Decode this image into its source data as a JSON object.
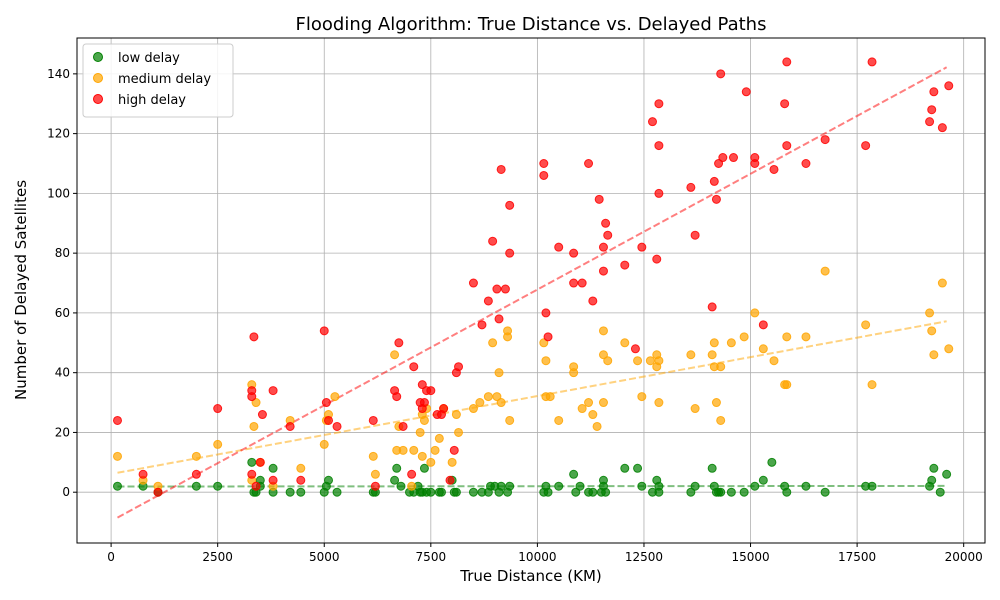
{
  "chart_data": {
    "type": "scatter",
    "title": "Flooding Algorithm: True Distance vs. Delayed Paths",
    "xlabel": "True Distance (KM)",
    "ylabel": "Number of Delayed Satellites",
    "xlim": [
      -800,
      20500
    ],
    "ylim": [
      -17,
      152
    ],
    "xticks": [
      0,
      2500,
      5000,
      7500,
      10000,
      12500,
      15000,
      17500,
      20000
    ],
    "yticks": [
      0,
      20,
      40,
      60,
      80,
      100,
      120,
      140
    ],
    "grid": true,
    "legend_position": "top-left",
    "series": [
      {
        "name": "low delay",
        "color": "#008000",
        "trend": {
          "x": [
            150,
            19600
          ],
          "y": [
            1.9,
            2.1
          ]
        },
        "points": [
          [
            150,
            2
          ],
          [
            750,
            2
          ],
          [
            1100,
            0
          ],
          [
            2000,
            2
          ],
          [
            2500,
            2
          ],
          [
            3300,
            10
          ],
          [
            3350,
            0
          ],
          [
            3400,
            0
          ],
          [
            3500,
            4
          ],
          [
            3500,
            2
          ],
          [
            3800,
            8
          ],
          [
            3800,
            0
          ],
          [
            4200,
            0
          ],
          [
            4450,
            0
          ],
          [
            5000,
            0
          ],
          [
            5050,
            2
          ],
          [
            5100,
            4
          ],
          [
            5300,
            0
          ],
          [
            6150,
            0
          ],
          [
            6200,
            0
          ],
          [
            6650,
            4
          ],
          [
            6700,
            8
          ],
          [
            6800,
            2
          ],
          [
            7000,
            0
          ],
          [
            7100,
            0
          ],
          [
            7200,
            2
          ],
          [
            7250,
            0
          ],
          [
            7300,
            0
          ],
          [
            7350,
            8
          ],
          [
            7400,
            0
          ],
          [
            7500,
            0
          ],
          [
            7700,
            0
          ],
          [
            7750,
            0
          ],
          [
            8000,
            4
          ],
          [
            8050,
            0
          ],
          [
            8100,
            0
          ],
          [
            8500,
            0
          ],
          [
            8700,
            0
          ],
          [
            8850,
            0
          ],
          [
            8900,
            2
          ],
          [
            9000,
            2
          ],
          [
            9100,
            0
          ],
          [
            9150,
            2
          ],
          [
            9300,
            0
          ],
          [
            9350,
            2
          ],
          [
            10150,
            0
          ],
          [
            10200,
            2
          ],
          [
            10250,
            0
          ],
          [
            10500,
            2
          ],
          [
            10850,
            6
          ],
          [
            10900,
            0
          ],
          [
            11000,
            2
          ],
          [
            11200,
            0
          ],
          [
            11300,
            0
          ],
          [
            11500,
            0
          ],
          [
            11550,
            4
          ],
          [
            11550,
            2
          ],
          [
            11600,
            0
          ],
          [
            12050,
            8
          ],
          [
            12350,
            8
          ],
          [
            12450,
            2
          ],
          [
            12700,
            0
          ],
          [
            12800,
            4
          ],
          [
            12850,
            2
          ],
          [
            12850,
            0
          ],
          [
            13600,
            0
          ],
          [
            13700,
            2
          ],
          [
            14100,
            8
          ],
          [
            14150,
            2
          ],
          [
            14200,
            0
          ],
          [
            14250,
            0
          ],
          [
            14300,
            0
          ],
          [
            14550,
            0
          ],
          [
            14850,
            0
          ],
          [
            15100,
            2
          ],
          [
            15300,
            4
          ],
          [
            15500,
            10
          ],
          [
            15800,
            2
          ],
          [
            15850,
            0
          ],
          [
            16300,
            2
          ],
          [
            16750,
            0
          ],
          [
            17700,
            2
          ],
          [
            17850,
            2
          ],
          [
            19200,
            2
          ],
          [
            19250,
            4
          ],
          [
            19300,
            8
          ],
          [
            19450,
            0
          ],
          [
            19600,
            6
          ]
        ]
      },
      {
        "name": "medium delay",
        "color": "#FFA500",
        "trend": {
          "x": [
            150,
            19600
          ],
          "y": [
            6.5,
            57.2
          ]
        },
        "points": [
          [
            150,
            12
          ],
          [
            750,
            4
          ],
          [
            1100,
            2
          ],
          [
            2000,
            12
          ],
          [
            2500,
            16
          ],
          [
            3300,
            36
          ],
          [
            3300,
            4
          ],
          [
            3350,
            22
          ],
          [
            3400,
            30
          ],
          [
            3500,
            10
          ],
          [
            3800,
            2
          ],
          [
            4200,
            24
          ],
          [
            4450,
            8
          ],
          [
            5000,
            16
          ],
          [
            5050,
            24
          ],
          [
            5100,
            26
          ],
          [
            5250,
            32
          ],
          [
            6150,
            12
          ],
          [
            6200,
            6
          ],
          [
            6650,
            46
          ],
          [
            6700,
            14
          ],
          [
            6750,
            22
          ],
          [
            6850,
            14
          ],
          [
            7050,
            2
          ],
          [
            7100,
            14
          ],
          [
            7250,
            20
          ],
          [
            7300,
            26
          ],
          [
            7300,
            12
          ],
          [
            7350,
            24
          ],
          [
            7400,
            28
          ],
          [
            7500,
            10
          ],
          [
            7600,
            14
          ],
          [
            7700,
            18
          ],
          [
            7800,
            28
          ],
          [
            8000,
            10
          ],
          [
            8100,
            26
          ],
          [
            8150,
            20
          ],
          [
            8500,
            28
          ],
          [
            8650,
            30
          ],
          [
            8850,
            32
          ],
          [
            8950,
            50
          ],
          [
            9050,
            32
          ],
          [
            9100,
            40
          ],
          [
            9150,
            30
          ],
          [
            9300,
            52
          ],
          [
            9300,
            54
          ],
          [
            9350,
            24
          ],
          [
            10150,
            50
          ],
          [
            10200,
            44
          ],
          [
            10200,
            32
          ],
          [
            10300,
            32
          ],
          [
            10500,
            24
          ],
          [
            10850,
            40
          ],
          [
            10850,
            42
          ],
          [
            11050,
            28
          ],
          [
            11200,
            30
          ],
          [
            11300,
            26
          ],
          [
            11400,
            22
          ],
          [
            11550,
            30
          ],
          [
            11550,
            54
          ],
          [
            11550,
            46
          ],
          [
            11650,
            44
          ],
          [
            12050,
            50
          ],
          [
            12350,
            44
          ],
          [
            12450,
            32
          ],
          [
            12650,
            44
          ],
          [
            12800,
            46
          ],
          [
            12800,
            42
          ],
          [
            12850,
            44
          ],
          [
            12850,
            30
          ],
          [
            13600,
            46
          ],
          [
            13700,
            28
          ],
          [
            14100,
            46
          ],
          [
            14150,
            50
          ],
          [
            14150,
            42
          ],
          [
            14200,
            30
          ],
          [
            14300,
            42
          ],
          [
            14300,
            24
          ],
          [
            14550,
            50
          ],
          [
            14850,
            52
          ],
          [
            15100,
            60
          ],
          [
            15300,
            48
          ],
          [
            15550,
            44
          ],
          [
            15800,
            36
          ],
          [
            15850,
            36
          ],
          [
            15850,
            52
          ],
          [
            16300,
            52
          ],
          [
            16750,
            74
          ],
          [
            17700,
            56
          ],
          [
            17850,
            36
          ],
          [
            19200,
            60
          ],
          [
            19250,
            54
          ],
          [
            19300,
            46
          ],
          [
            19500,
            70
          ],
          [
            19650,
            48
          ]
        ]
      },
      {
        "name": "high delay",
        "color": "#FF0000",
        "trend": {
          "x": [
            150,
            19600
          ],
          "y": [
            -8.5,
            142.2
          ]
        },
        "points": [
          [
            150,
            24
          ],
          [
            750,
            6
          ],
          [
            1100,
            0
          ],
          [
            2000,
            6
          ],
          [
            2500,
            28
          ],
          [
            3300,
            34
          ],
          [
            3300,
            32
          ],
          [
            3300,
            6
          ],
          [
            3350,
            52
          ],
          [
            3400,
            2
          ],
          [
            3500,
            10
          ],
          [
            3550,
            26
          ],
          [
            3800,
            34
          ],
          [
            3800,
            4
          ],
          [
            4200,
            22
          ],
          [
            4450,
            4
          ],
          [
            5000,
            54
          ],
          [
            5050,
            30
          ],
          [
            5100,
            24
          ],
          [
            5300,
            22
          ],
          [
            6150,
            24
          ],
          [
            6200,
            2
          ],
          [
            6650,
            34
          ],
          [
            6700,
            32
          ],
          [
            6750,
            50
          ],
          [
            6850,
            22
          ],
          [
            7050,
            6
          ],
          [
            7100,
            42
          ],
          [
            7250,
            30
          ],
          [
            7300,
            36
          ],
          [
            7300,
            28
          ],
          [
            7350,
            30
          ],
          [
            7400,
            34
          ],
          [
            7500,
            34
          ],
          [
            7650,
            26
          ],
          [
            7750,
            26
          ],
          [
            7800,
            28
          ],
          [
            7950,
            4
          ],
          [
            8050,
            14
          ],
          [
            8100,
            40
          ],
          [
            8150,
            42
          ],
          [
            8500,
            70
          ],
          [
            8700,
            56
          ],
          [
            8850,
            64
          ],
          [
            8950,
            84
          ],
          [
            9050,
            68
          ],
          [
            9100,
            58
          ],
          [
            9150,
            108
          ],
          [
            9250,
            68
          ],
          [
            9350,
            96
          ],
          [
            9350,
            80
          ],
          [
            10150,
            110
          ],
          [
            10150,
            106
          ],
          [
            10200,
            60
          ],
          [
            10250,
            52
          ],
          [
            10500,
            82
          ],
          [
            10850,
            70
          ],
          [
            10850,
            80
          ],
          [
            11050,
            70
          ],
          [
            11200,
            110
          ],
          [
            11300,
            64
          ],
          [
            11450,
            98
          ],
          [
            11550,
            74
          ],
          [
            11550,
            82
          ],
          [
            11600,
            90
          ],
          [
            11650,
            86
          ],
          [
            12050,
            76
          ],
          [
            12300,
            48
          ],
          [
            12450,
            82
          ],
          [
            12700,
            124
          ],
          [
            12800,
            78
          ],
          [
            12850,
            100
          ],
          [
            12850,
            116
          ],
          [
            12850,
            130
          ],
          [
            13600,
            102
          ],
          [
            13700,
            86
          ],
          [
            14100,
            62
          ],
          [
            14150,
            104
          ],
          [
            14200,
            98
          ],
          [
            14250,
            110
          ],
          [
            14300,
            140
          ],
          [
            14350,
            112
          ],
          [
            14600,
            112
          ],
          [
            14900,
            134
          ],
          [
            15100,
            110
          ],
          [
            15100,
            112
          ],
          [
            15300,
            56
          ],
          [
            15550,
            108
          ],
          [
            15800,
            130
          ],
          [
            15850,
            116
          ],
          [
            15850,
            144
          ],
          [
            16300,
            110
          ],
          [
            16750,
            118
          ],
          [
            17700,
            116
          ],
          [
            17850,
            144
          ],
          [
            19200,
            124
          ],
          [
            19250,
            128
          ],
          [
            19300,
            134
          ],
          [
            19500,
            122
          ],
          [
            19650,
            136
          ]
        ]
      }
    ]
  }
}
